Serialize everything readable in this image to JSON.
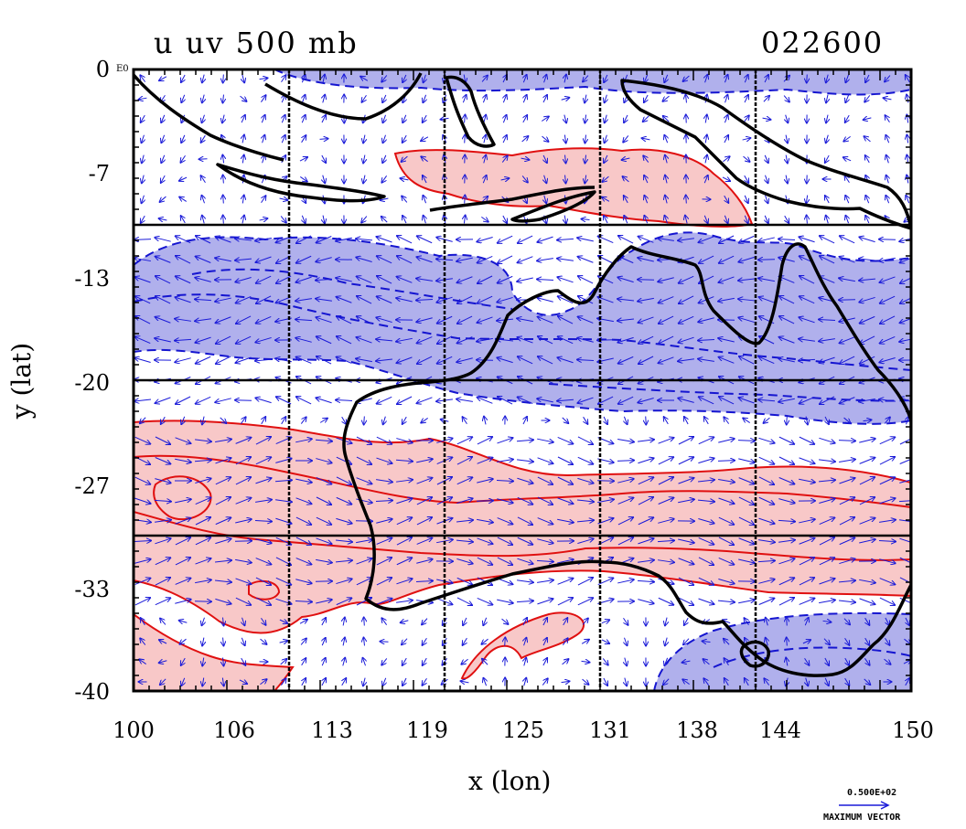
{
  "title": {
    "left": "u uv 500 mb",
    "right": "022600"
  },
  "axes": {
    "xlabel": "x (lon)",
    "ylabel": "y (lat)",
    "x_ticks": [
      "100",
      "106",
      "113",
      "119",
      "125",
      "131",
      "138",
      "144",
      "150"
    ],
    "y_ticks": [
      "0",
      "-7",
      "-13",
      "-20",
      "-27",
      "-33",
      "-40"
    ],
    "y_top_suffix": "E0",
    "xlim": [
      100,
      150
    ],
    "ylim": [
      -40,
      0
    ]
  },
  "legend": {
    "magnitude": "0.500E+02",
    "caption": "MAXIMUM VECTOR"
  },
  "colors": {
    "positive": "#f8c8c8",
    "positive_line": "#e01010",
    "negative": "#b0b0ec",
    "negative_line": "#1515d0",
    "vector": "#1a1ad8",
    "coast": "#000000"
  },
  "chart_data": {
    "type": "contour-vector-map",
    "variable": "u",
    "level": "500 mb",
    "time": "022600",
    "region": {
      "lon": [
        100,
        150
      ],
      "lat": [
        -40,
        0
      ]
    },
    "positive_u_bands": [
      {
        "lat": [
          -10,
          -5
        ],
        "lon": [
          117,
          139
        ]
      },
      {
        "lat": [
          -33,
          -23
        ],
        "lon": [
          100,
          150
        ]
      },
      {
        "lat": [
          -40,
          -35
        ],
        "lon": [
          100,
          110
        ]
      },
      {
        "lat": [
          -40,
          -35
        ],
        "lon": [
          121,
          129
        ]
      }
    ],
    "negative_u_bands": [
      {
        "lat": [
          -22,
          -11
        ],
        "lon": [
          100,
          150
        ]
      },
      {
        "lat": [
          -40,
          -35
        ],
        "lon": [
          134,
          150
        ]
      },
      {
        "lat": [
          -2,
          0
        ],
        "lon": [
          108,
          150
        ]
      }
    ],
    "grid": true
  }
}
